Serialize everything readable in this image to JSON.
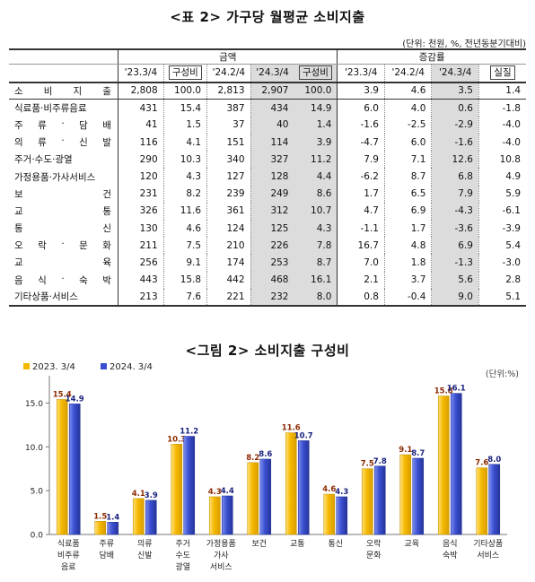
{
  "table": {
    "title": "<표 2> 가구당 월평균 소비지출",
    "unit": "(단위: 천원, %, 전년동분기대비)",
    "group_amount": "금액",
    "group_change": "증감률",
    "col_headers": [
      "'23.3/4",
      "구성비",
      "'24.2/4",
      "'24.3/4",
      "구성비",
      "'23.3/4",
      "'24.2/4",
      "'24.3/4",
      "실질"
    ],
    "rows": [
      {
        "label": "소 비 지 출",
        "values": [
          "2,808",
          "100.0",
          "2,813",
          "2,907",
          "100.0",
          "3.9",
          "4.6",
          "3.5",
          "1.4"
        ]
      },
      {
        "label": "식료품·비주류음료",
        "values": [
          "431",
          "15.4",
          "387",
          "434",
          "14.9",
          "6.0",
          "4.0",
          "0.6",
          "-1.8"
        ]
      },
      {
        "label": "주 류 · 담 배",
        "values": [
          "41",
          "1.5",
          "37",
          "40",
          "1.4",
          "-1.6",
          "-2.5",
          "-2.9",
          "-4.0"
        ]
      },
      {
        "label": "의 류 · 신 발",
        "values": [
          "116",
          "4.1",
          "151",
          "114",
          "3.9",
          "-4.7",
          "6.0",
          "-1.6",
          "-4.0"
        ]
      },
      {
        "label": "주거·수도·광열",
        "values": [
          "290",
          "10.3",
          "340",
          "327",
          "11.2",
          "7.9",
          "7.1",
          "12.6",
          "10.8"
        ]
      },
      {
        "label": "가정용품·가사서비스",
        "values": [
          "120",
          "4.3",
          "127",
          "128",
          "4.4",
          "-6.2",
          "8.7",
          "6.8",
          "4.9"
        ]
      },
      {
        "label": "보 건",
        "values": [
          "231",
          "8.2",
          "239",
          "249",
          "8.6",
          "1.7",
          "6.5",
          "7.9",
          "5.9"
        ]
      },
      {
        "label": "교 통",
        "values": [
          "326",
          "11.6",
          "361",
          "312",
          "10.7",
          "4.7",
          "6.9",
          "-4.3",
          "-6.1"
        ]
      },
      {
        "label": "통 신",
        "values": [
          "130",
          "4.6",
          "124",
          "125",
          "4.3",
          "-1.1",
          "1.7",
          "-3.6",
          "-3.9"
        ]
      },
      {
        "label": "오 락 · 문 화",
        "values": [
          "211",
          "7.5",
          "210",
          "226",
          "7.8",
          "16.7",
          "4.8",
          "6.9",
          "5.4"
        ]
      },
      {
        "label": "교 육",
        "values": [
          "256",
          "9.1",
          "174",
          "253",
          "8.7",
          "7.0",
          "1.8",
          "-1.3",
          "-3.0"
        ]
      },
      {
        "label": "음 식 · 숙 박",
        "values": [
          "443",
          "15.8",
          "442",
          "468",
          "16.1",
          "2.1",
          "3.7",
          "5.6",
          "2.8"
        ]
      },
      {
        "label": "기타상품·서비스",
        "values": [
          "213",
          "7.6",
          "221",
          "232",
          "8.0",
          "0.8",
          "-0.4",
          "9.0",
          "5.1"
        ]
      }
    ]
  },
  "figure": {
    "title": "<그림 2> 소비지출 구성비",
    "unit": "(단위:%)"
  },
  "chart_data": {
    "type": "bar",
    "categories": [
      [
        "식료품",
        "비주류",
        "음료"
      ],
      [
        "주류",
        "담배"
      ],
      [
        "의류",
        "신발"
      ],
      [
        "주거",
        "수도",
        "광열"
      ],
      [
        "가정용품",
        "가사",
        "서비스"
      ],
      [
        "보건"
      ],
      [
        "교통"
      ],
      [
        "통신"
      ],
      [
        "오락",
        "문화"
      ],
      [
        "교육"
      ],
      [
        "음식",
        "숙박"
      ],
      [
        "기타상품",
        "서비스"
      ]
    ],
    "series": [
      {
        "name": "2023. 3/4",
        "color": "#f5b800",
        "values": [
          15.4,
          1.5,
          4.1,
          10.3,
          4.3,
          8.2,
          11.6,
          4.6,
          7.5,
          9.1,
          15.8,
          7.6
        ]
      },
      {
        "name": "2024. 3/4",
        "color": "#3a4fd0",
        "values": [
          14.9,
          1.4,
          3.9,
          11.2,
          4.4,
          8.6,
          10.7,
          4.3,
          7.8,
          8.7,
          16.1,
          8.0
        ]
      }
    ],
    "ylim": [
      0,
      17.5
    ],
    "yticks": [
      "0.0",
      "5.0",
      "10.0",
      "15.0"
    ],
    "grid": false,
    "legend": "top-left",
    "label_colors": [
      "#8b2a00",
      "#1a237e"
    ]
  }
}
